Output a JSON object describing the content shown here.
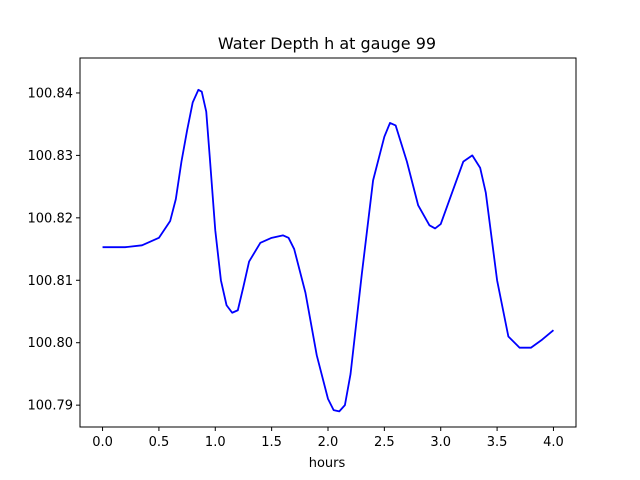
{
  "chart_data": {
    "type": "line",
    "title": "Water Depth h at gauge 99",
    "xlabel": "hours",
    "ylabel": "",
    "xlim": [
      -0.2,
      4.2
    ],
    "ylim": [
      100.7865,
      100.8456
    ],
    "xticks": [
      0.0,
      0.5,
      1.0,
      1.5,
      2.0,
      2.5,
      3.0,
      3.5,
      4.0
    ],
    "xtick_labels": [
      "0.0",
      "0.5",
      "1.0",
      "1.5",
      "2.0",
      "2.5",
      "3.0",
      "3.5",
      "4.0"
    ],
    "yticks": [
      100.79,
      100.8,
      100.81,
      100.82,
      100.83,
      100.84
    ],
    "ytick_labels": [
      "100.79",
      "100.80",
      "100.81",
      "100.82",
      "100.83",
      "100.84"
    ],
    "grid": false,
    "series": [
      {
        "color": "#0000ff",
        "x": [
          0.0,
          0.2,
          0.35,
          0.5,
          0.6,
          0.65,
          0.7,
          0.75,
          0.8,
          0.85,
          0.88,
          0.92,
          0.95,
          1.0,
          1.05,
          1.1,
          1.15,
          1.2,
          1.25,
          1.3,
          1.4,
          1.5,
          1.6,
          1.65,
          1.7,
          1.8,
          1.9,
          2.0,
          2.05,
          2.1,
          2.15,
          2.2,
          2.3,
          2.4,
          2.5,
          2.55,
          2.6,
          2.7,
          2.8,
          2.9,
          2.95,
          3.0,
          3.1,
          3.2,
          3.28,
          3.35,
          3.4,
          3.5,
          3.6,
          3.7,
          3.8,
          3.9,
          4.0
        ],
        "y": [
          100.8153,
          100.8153,
          100.8156,
          100.8168,
          100.8195,
          100.823,
          100.829,
          100.834,
          100.8385,
          100.8405,
          100.8402,
          100.837,
          100.83,
          100.818,
          100.81,
          100.806,
          100.8048,
          100.8052,
          100.809,
          100.813,
          100.816,
          100.8168,
          100.8172,
          100.8168,
          100.815,
          100.808,
          100.798,
          100.791,
          100.7892,
          100.789,
          100.79,
          100.795,
          100.811,
          100.826,
          100.833,
          100.8352,
          100.8348,
          100.829,
          100.822,
          100.8188,
          100.8183,
          100.819,
          100.824,
          100.829,
          100.83,
          100.828,
          100.824,
          100.81,
          100.801,
          100.7992,
          100.7992,
          100.8005,
          100.802
        ]
      }
    ]
  }
}
